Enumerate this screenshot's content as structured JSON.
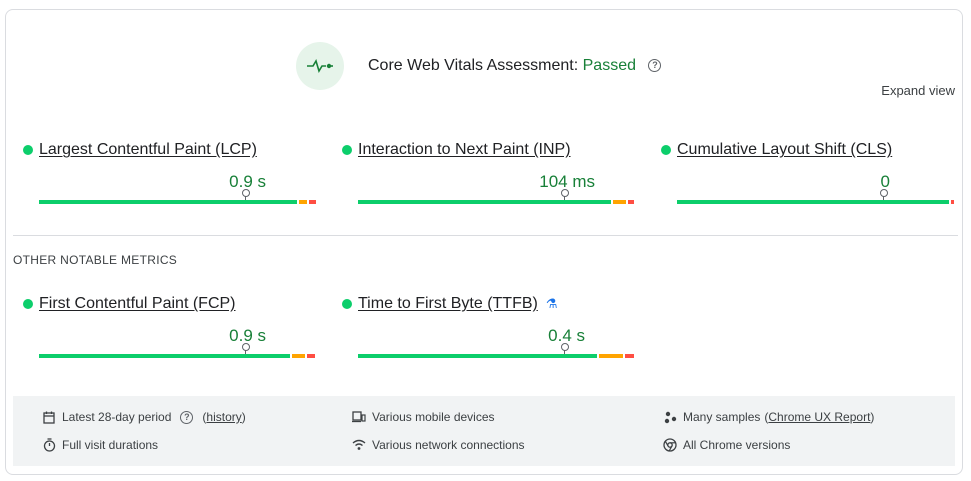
{
  "header": {
    "title": "Core Web Vitals Assessment:",
    "status": "Passed",
    "expand_label": "Expand view",
    "status_color": "#188038",
    "accent_bg": "#e6f4ea"
  },
  "core_metrics": [
    {
      "name": "Largest Contentful Paint (LCP)",
      "value": "0.9 s",
      "marker_position": 0.75
    },
    {
      "name": "Interaction to Next Paint (INP)",
      "value": "104 ms",
      "marker_position": 0.75
    },
    {
      "name": "Cumulative Layout Shift (CLS)",
      "value": "0",
      "marker_position": 0.75
    }
  ],
  "section_label": "OTHER NOTABLE METRICS",
  "other_metrics": [
    {
      "name": "First Contentful Paint (FCP)",
      "value": "0.9 s",
      "marker_position": 0.75
    },
    {
      "name": "Time to First Byte (TTFB)",
      "value": "0.4 s",
      "marker_position": 0.75,
      "experimental": true
    }
  ],
  "footer": {
    "period_text": "Latest 28-day period",
    "history_link": "history",
    "duration_text": "Full visit durations",
    "devices_text": "Various mobile devices",
    "network_text": "Various network connections",
    "samples_prefix": "Many samples",
    "samples_link": "Chrome UX Report",
    "versions_text": "All Chrome versions"
  },
  "colors": {
    "good": "#0cce6b",
    "needs_improvement": "#ffa400",
    "poor": "#ff4e42"
  }
}
